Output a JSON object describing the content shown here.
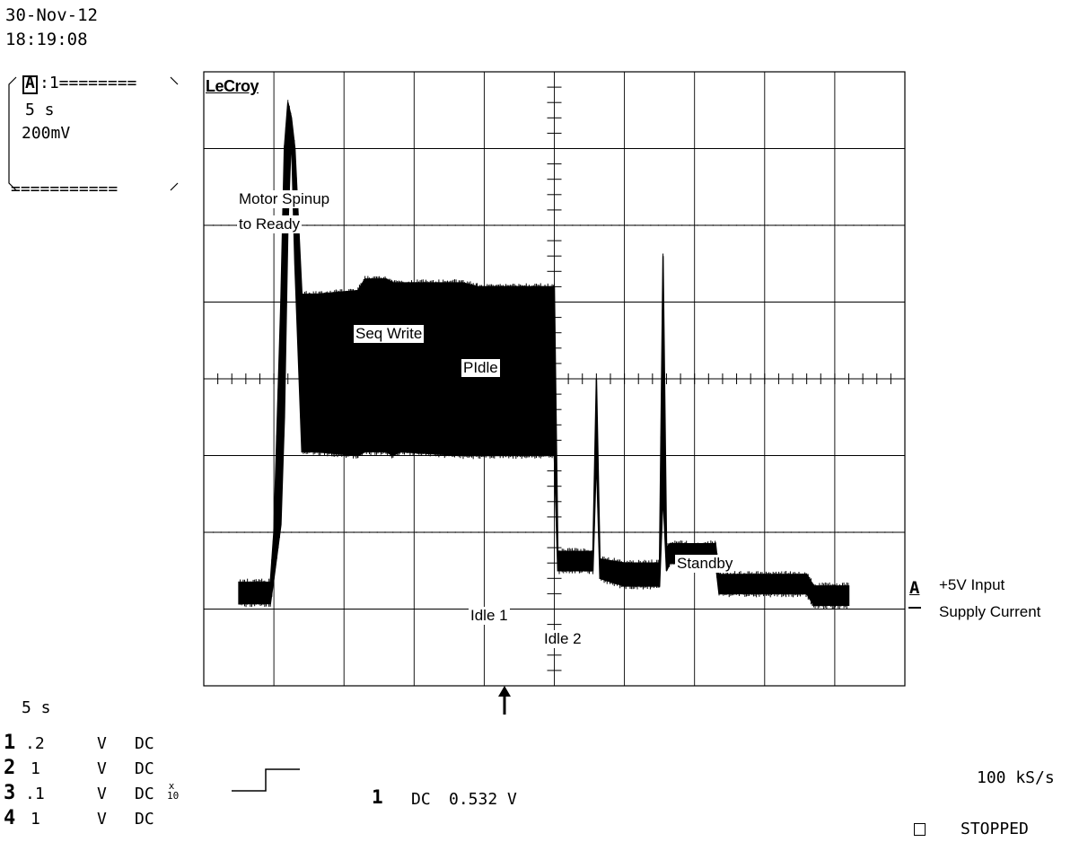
{
  "header": {
    "date": "30-Nov-12",
    "time": "18:19:08"
  },
  "trace_box": {
    "title_letter": "A",
    "title_suffix": ":1========",
    "timebase": "5 s",
    "volts": "200mV",
    "bottom_rule": "==========="
  },
  "brand": "LeCroy",
  "annotations": {
    "motor_spinup_line1": "Motor Spinup",
    "motor_spinup_line2": "to Ready",
    "seq_write": "Seq Write",
    "pidle": "PIdle",
    "idle1": "Idle 1",
    "idle2": "Idle 2",
    "standby": "Standby"
  },
  "trace_marker": {
    "letter": "A",
    "label_line1": "+5V Input",
    "label_line2": "Supply Current"
  },
  "timebase_readout": "5  s",
  "channels": [
    {
      "num": "1",
      "scale": ".2",
      "unit": "V",
      "coupling": "DC",
      "extra": ""
    },
    {
      "num": "2",
      "scale": "1",
      "unit": "V",
      "coupling": "DC",
      "extra": ""
    },
    {
      "num": "3",
      "scale": ".1",
      "unit": "V",
      "coupling": "DC",
      "extra": "x10"
    },
    {
      "num": "4",
      "scale": "1",
      "unit": "V",
      "coupling": "DC",
      "extra": ""
    }
  ],
  "trigger": {
    "source": "1",
    "coupling": "DC",
    "level": "0.532 V"
  },
  "sample_rate": "100 kS/s",
  "acq_status": "STOPPED",
  "chart_data": {
    "type": "line",
    "title": "",
    "xlabel": "",
    "ylabel": "",
    "grid": true,
    "divisions": {
      "x": 10,
      "y": 8
    },
    "xlim": [
      0,
      10
    ],
    "ylim": [
      -4,
      4
    ],
    "series": [
      {
        "name": "+5V Input Supply Current",
        "x": [
          0.5,
          0.95,
          1.0,
          1.1,
          1.15,
          1.2,
          1.25,
          1.3,
          1.4,
          1.6,
          2.2,
          2.3,
          2.6,
          2.7,
          2.8,
          3.7,
          3.9,
          4.6,
          5.0,
          5.05,
          5.5,
          5.55,
          5.6,
          5.65,
          6.0,
          6.4,
          6.5,
          6.55,
          6.6,
          6.65,
          6.7,
          7.3,
          7.35,
          8.0,
          8.1,
          8.6,
          8.7,
          9.2
        ],
        "y_min": [
          -2.93,
          -2.93,
          -2.6,
          -1.9,
          -0.5,
          2.0,
          3.2,
          1.5,
          -0.95,
          -0.95,
          -1.0,
          -0.95,
          -0.95,
          -1.0,
          -0.95,
          -1.0,
          -1.0,
          -1.0,
          -1.0,
          -2.5,
          -2.5,
          -2.5,
          -1.0,
          -2.6,
          -2.7,
          -2.7,
          -2.7,
          -1.5,
          -2.5,
          -2.4,
          -2.4,
          -2.4,
          -2.8,
          -2.8,
          -2.8,
          -2.8,
          -2.95,
          -2.95
        ],
        "y_max": [
          -2.65,
          -2.65,
          -2.0,
          1.0,
          3.0,
          3.6,
          3.4,
          3.0,
          1.1,
          1.1,
          1.15,
          1.3,
          1.3,
          1.25,
          1.25,
          1.25,
          1.2,
          1.2,
          1.2,
          -2.25,
          -2.25,
          -2.25,
          0.0,
          -2.35,
          -2.4,
          -2.4,
          -2.4,
          1.6,
          -2.2,
          -2.15,
          -2.15,
          -2.15,
          -2.55,
          -2.55,
          -2.55,
          -2.55,
          -2.7,
          -2.7
        ]
      }
    ],
    "ground_level_div": -3
  }
}
